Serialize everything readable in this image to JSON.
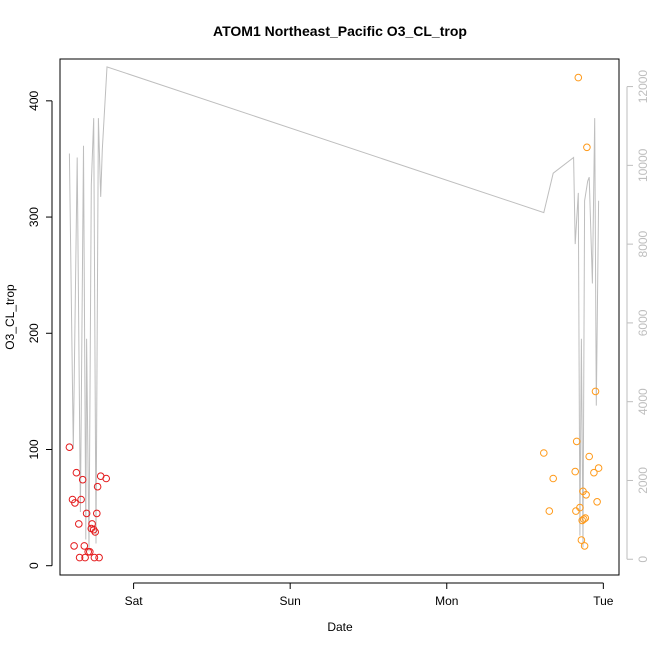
{
  "chart_data": {
    "type": "scatter",
    "title": "ATOM1 Northeast_Pacific O3_CL_trop",
    "xlabel": "Date",
    "ylabel": "O3_CL_trop",
    "x_ticks": [
      {
        "label": "Sat",
        "value": 1.0
      },
      {
        "label": "Sun",
        "value": 2.0
      },
      {
        "label": "Mon",
        "value": 3.0
      },
      {
        "label": "Tue",
        "value": 4.0
      }
    ],
    "xlim": [
      0.53,
      4.1
    ],
    "ylim": [
      -8,
      436
    ],
    "y_ticks": [
      0,
      100,
      200,
      300,
      400
    ],
    "y2lim": [
      -400,
      12700
    ],
    "y2_ticks": [
      0,
      2000,
      4000,
      6000,
      8000,
      10000,
      12000
    ],
    "grid": false,
    "colors": {
      "series1": "#e41a1c",
      "series2": "#ff9a1a",
      "line": "#bebebe"
    },
    "series": [
      {
        "color": "#e41a1c",
        "points": [
          [
            0.59,
            102
          ],
          [
            0.61,
            57
          ],
          [
            0.62,
            17
          ],
          [
            0.625,
            54
          ],
          [
            0.635,
            80
          ],
          [
            0.65,
            36
          ],
          [
            0.655,
            7
          ],
          [
            0.665,
            57
          ],
          [
            0.675,
            74
          ],
          [
            0.685,
            17
          ],
          [
            0.69,
            7
          ],
          [
            0.7,
            45
          ],
          [
            0.71,
            12
          ],
          [
            0.72,
            12
          ],
          [
            0.73,
            32
          ],
          [
            0.735,
            36
          ],
          [
            0.745,
            31
          ],
          [
            0.75,
            7
          ],
          [
            0.755,
            29
          ],
          [
            0.765,
            45
          ],
          [
            0.77,
            68
          ],
          [
            0.78,
            7
          ],
          [
            0.79,
            77
          ],
          [
            0.825,
            75
          ]
        ]
      },
      {
        "color": "#ff9a1a",
        "points": [
          [
            3.62,
            97
          ],
          [
            3.655,
            47
          ],
          [
            3.68,
            75
          ],
          [
            3.82,
            81
          ],
          [
            3.825,
            47
          ],
          [
            3.83,
            107
          ],
          [
            3.84,
            420
          ],
          [
            3.85,
            50
          ],
          [
            3.86,
            22
          ],
          [
            3.865,
            39
          ],
          [
            3.87,
            64
          ],
          [
            3.875,
            40
          ],
          [
            3.88,
            17
          ],
          [
            3.885,
            41
          ],
          [
            3.89,
            61
          ],
          [
            3.895,
            360
          ],
          [
            3.91,
            94
          ],
          [
            3.94,
            80
          ],
          [
            3.95,
            150
          ],
          [
            3.96,
            55
          ],
          [
            3.97,
            84
          ]
        ]
      }
    ],
    "line_series": {
      "color": "#bebebe",
      "axis": "right",
      "points": [
        [
          0.59,
          10300
        ],
        [
          0.615,
          2800
        ],
        [
          0.64,
          10200
        ],
        [
          0.66,
          1200
        ],
        [
          0.68,
          10500
        ],
        [
          0.695,
          500
        ],
        [
          0.7,
          5600
        ],
        [
          0.715,
          200
        ],
        [
          0.73,
          9500
        ],
        [
          0.745,
          11200
        ],
        [
          0.76,
          400
        ],
        [
          0.775,
          11200
        ],
        [
          0.79,
          9200
        ],
        [
          0.8,
          10400
        ],
        [
          0.83,
          12500
        ],
        [
          3.62,
          8800
        ],
        [
          3.68,
          9800
        ],
        [
          3.81,
          10200
        ],
        [
          3.82,
          8000
        ],
        [
          3.84,
          9300
        ],
        [
          3.85,
          600
        ],
        [
          3.86,
          5600
        ],
        [
          3.87,
          300
        ],
        [
          3.88,
          9100
        ],
        [
          3.9,
          9600
        ],
        [
          3.91,
          9700
        ],
        [
          3.93,
          7000
        ],
        [
          3.945,
          11200
        ],
        [
          3.955,
          3900
        ],
        [
          3.97,
          9100
        ]
      ]
    }
  }
}
